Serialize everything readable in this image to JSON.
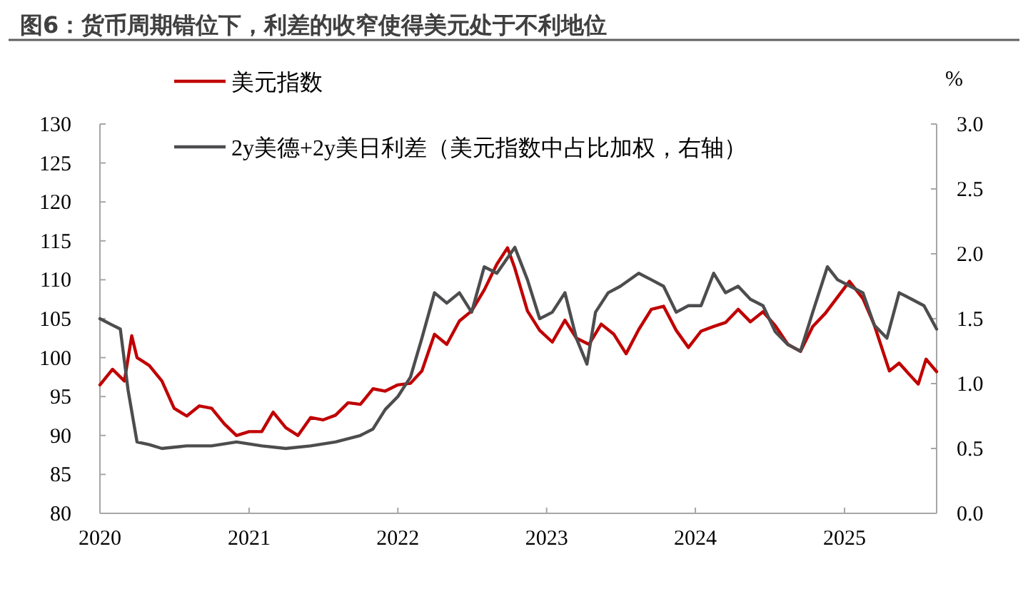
{
  "chart_data": {
    "type": "line",
    "title": "图6：货币周期错位下，利差的收窄使得美元处于不利地位",
    "y2label": "%",
    "legend": "top left",
    "grid": false,
    "xlim": [
      "2020-01-01",
      "2025-08-15"
    ],
    "xticks": [
      {
        "value": "2020-01-01",
        "label": "2020"
      },
      {
        "value": "2021-01-01",
        "label": "2021"
      },
      {
        "value": "2022-01-01",
        "label": "2022"
      },
      {
        "value": "2023-01-01",
        "label": "2023"
      },
      {
        "value": "2024-01-01",
        "label": "2024"
      },
      {
        "value": "2025-01-01",
        "label": "2025"
      }
    ],
    "ylim": [
      80,
      130
    ],
    "yticks": [
      80,
      85,
      90,
      95,
      100,
      105,
      110,
      115,
      120,
      125,
      130
    ],
    "y2lim": [
      0,
      3
    ],
    "y2ticks": [
      {
        "value": 0,
        "label": "0.0"
      },
      {
        "value": 0.5,
        "label": "0.5"
      },
      {
        "value": 1,
        "label": "1.0"
      },
      {
        "value": 1.5,
        "label": "1.5"
      },
      {
        "value": 2,
        "label": "2.0"
      },
      {
        "value": 2.5,
        "label": "2.5"
      },
      {
        "value": 3,
        "label": "3.0"
      }
    ],
    "series": [
      {
        "name": "美元指数",
        "color": "#c00000",
        "x": [
          "2020-01-01",
          "2020-02-01",
          "2020-03-01",
          "2020-03-19",
          "2020-04-01",
          "2020-05-01",
          "2020-06-01",
          "2020-07-01",
          "2020-08-01",
          "2020-09-01",
          "2020-10-01",
          "2020-11-01",
          "2020-12-01",
          "2021-01-01",
          "2021-02-01",
          "2021-03-01",
          "2021-04-01",
          "2021-05-01",
          "2021-06-01",
          "2021-07-01",
          "2021-08-01",
          "2021-09-01",
          "2021-10-01",
          "2021-11-01",
          "2021-12-01",
          "2022-01-01",
          "2022-02-01",
          "2022-03-01",
          "2022-04-01",
          "2022-05-01",
          "2022-06-01",
          "2022-07-01",
          "2022-08-01",
          "2022-09-01",
          "2022-09-27",
          "2022-10-15",
          "2022-11-15",
          "2022-12-15",
          "2023-01-15",
          "2023-02-15",
          "2023-03-15",
          "2023-04-15",
          "2023-05-15",
          "2023-06-15",
          "2023-07-15",
          "2023-08-15",
          "2023-09-15",
          "2023-10-15",
          "2023-11-15",
          "2023-12-15",
          "2024-01-15",
          "2024-02-15",
          "2024-03-15",
          "2024-04-15",
          "2024-05-15",
          "2024-06-15",
          "2024-07-15",
          "2024-08-15",
          "2024-09-15",
          "2024-10-15",
          "2024-11-15",
          "2025-01-13",
          "2025-02-15",
          "2025-03-15",
          "2025-04-21",
          "2025-05-15",
          "2025-06-15",
          "2025-07-01",
          "2025-07-20",
          "2025-08-15"
        ],
        "values": [
          96.5,
          98.5,
          97,
          102.8,
          100,
          99,
          97,
          93.5,
          92.5,
          93.8,
          93.5,
          91.5,
          90,
          90.5,
          90.5,
          93,
          91,
          90,
          92.3,
          92,
          92.6,
          94.2,
          94,
          96,
          95.7,
          96.5,
          96.7,
          98.3,
          103,
          101.7,
          104.7,
          106,
          108.7,
          112,
          114.1,
          111.5,
          106,
          103.5,
          102,
          104.8,
          102.5,
          101.7,
          104.3,
          103,
          100.5,
          103.6,
          106.2,
          106.6,
          103.5,
          101.3,
          103.4,
          104,
          104.5,
          106.2,
          104.6,
          105.9,
          104.1,
          101.7,
          100.8,
          104,
          105.7,
          109.8,
          107.6,
          104.2,
          98.3,
          99.3,
          97.5,
          96.6,
          99.8,
          98.2
        ]
      },
      {
        "name": "2y美德+2y美日利差（美元指数中占比加权，右轴）",
        "color": "#4d4d4f",
        "axis": "y2",
        "x": [
          "2020-01-01",
          "2020-02-01",
          "2020-02-20",
          "2020-03-10",
          "2020-04-01",
          "2020-05-01",
          "2020-06-01",
          "2020-08-01",
          "2020-10-01",
          "2020-12-01",
          "2021-02-01",
          "2021-04-01",
          "2021-06-01",
          "2021-08-01",
          "2021-10-01",
          "2021-11-01",
          "2021-12-01",
          "2022-01-01",
          "2022-02-01",
          "2022-03-01",
          "2022-04-01",
          "2022-05-01",
          "2022-06-01",
          "2022-07-01",
          "2022-08-01",
          "2022-09-01",
          "2022-10-15",
          "2022-11-15",
          "2022-12-15",
          "2023-01-15",
          "2023-02-15",
          "2023-03-15",
          "2023-04-10",
          "2023-05-01",
          "2023-06-01",
          "2023-07-01",
          "2023-08-15",
          "2023-09-15",
          "2023-10-15",
          "2023-11-15",
          "2023-12-15",
          "2024-01-15",
          "2024-02-15",
          "2024-03-15",
          "2024-04-15",
          "2024-05-15",
          "2024-06-15",
          "2024-07-15",
          "2024-08-15",
          "2024-09-15",
          "2024-10-15",
          "2024-11-20",
          "2024-12-15",
          "2025-01-15",
          "2025-02-15",
          "2025-03-15",
          "2025-04-15",
          "2025-05-15",
          "2025-06-15",
          "2025-07-15",
          "2025-08-15"
        ],
        "values": [
          1.5,
          1.45,
          1.42,
          0.95,
          0.55,
          0.53,
          0.5,
          0.52,
          0.52,
          0.55,
          0.52,
          0.5,
          0.52,
          0.55,
          0.6,
          0.65,
          0.8,
          0.9,
          1.05,
          1.35,
          1.7,
          1.62,
          1.7,
          1.55,
          1.9,
          1.85,
          2.05,
          1.8,
          1.5,
          1.55,
          1.7,
          1.35,
          1.15,
          1.55,
          1.7,
          1.75,
          1.85,
          1.8,
          1.75,
          1.55,
          1.6,
          1.6,
          1.85,
          1.7,
          1.75,
          1.65,
          1.6,
          1.4,
          1.3,
          1.25,
          1.55,
          1.9,
          1.8,
          1.75,
          1.7,
          1.45,
          1.35,
          1.7,
          1.65,
          1.6,
          1.42
        ]
      }
    ]
  }
}
